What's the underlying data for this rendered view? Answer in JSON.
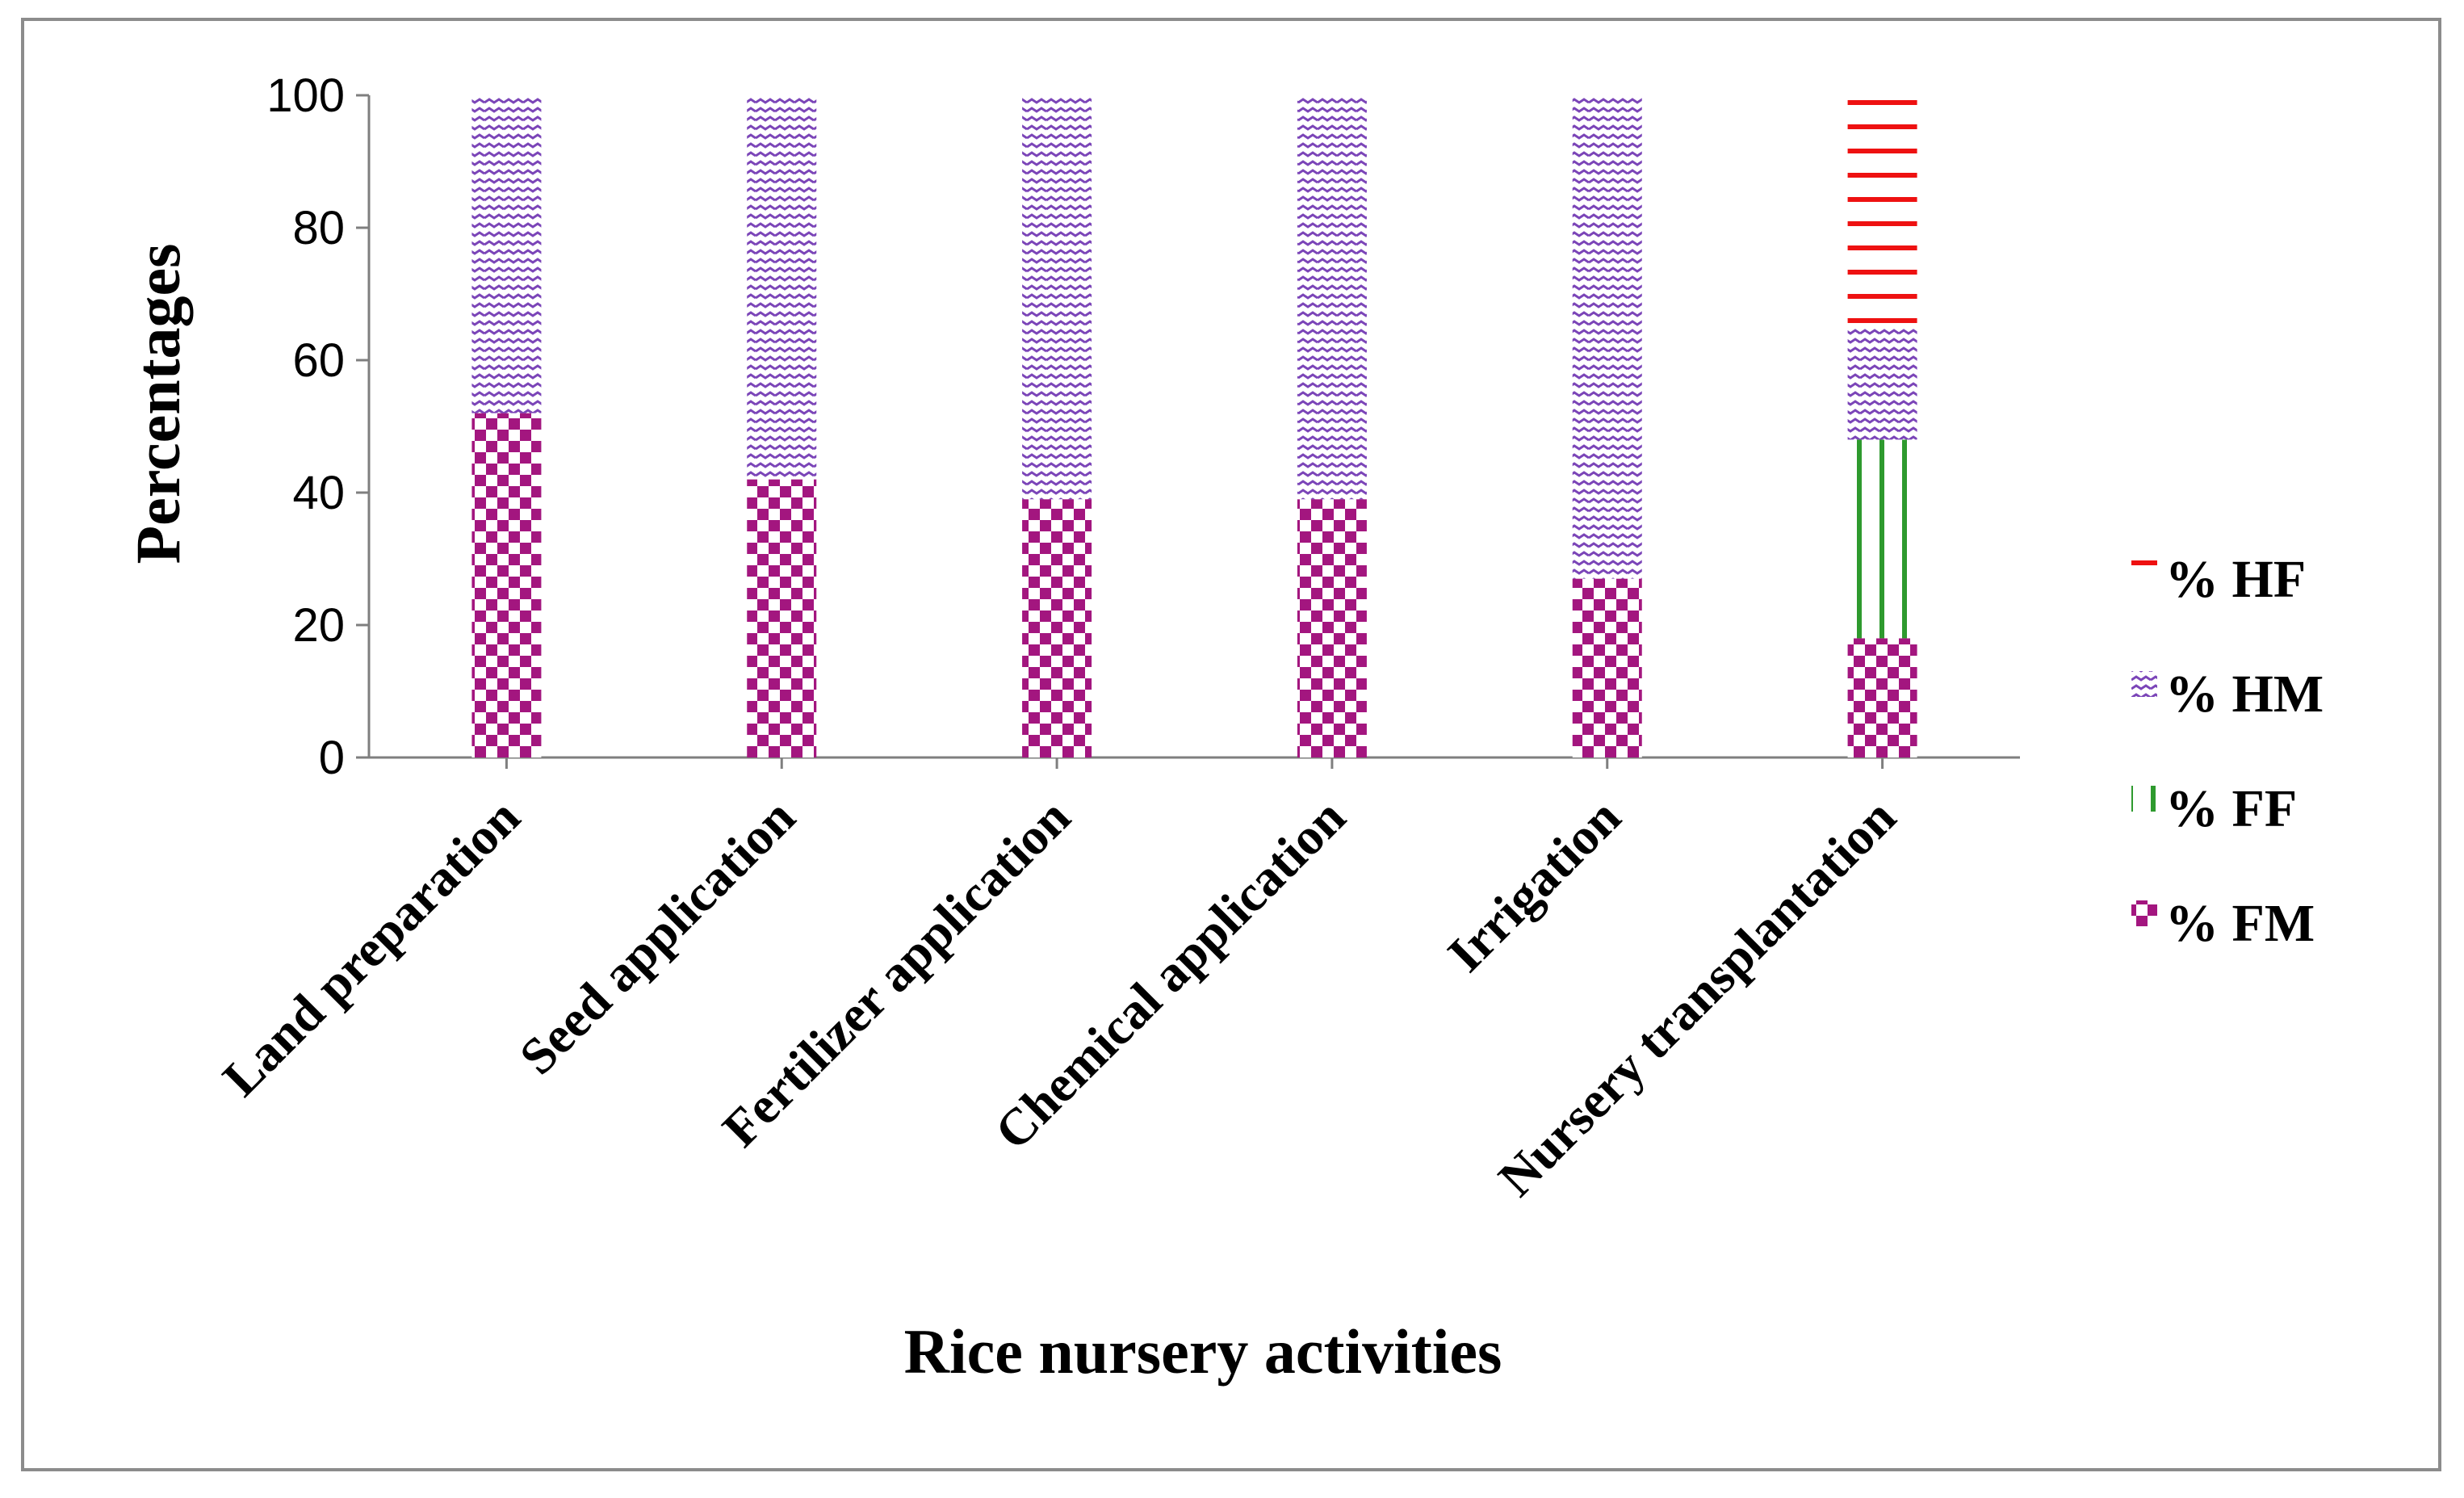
{
  "chart_data": {
    "type": "bar",
    "stacked": true,
    "title": "",
    "xlabel": "Rice nursery activities",
    "ylabel": "Percentages",
    "ylim": [
      0,
      100
    ],
    "yticks": [
      0,
      20,
      40,
      60,
      80,
      100
    ],
    "categories": [
      "Land preparation",
      "Seed application",
      "Fertilizer application",
      "Chemical application",
      "Irrigation",
      "Nursery transplantation"
    ],
    "series": [
      {
        "name": "% FM",
        "values": [
          52,
          42,
          39,
          39,
          27,
          18
        ],
        "color": "#a3167f",
        "pattern": "checker"
      },
      {
        "name": "% FF",
        "values": [
          0,
          0,
          0,
          0,
          0,
          30
        ],
        "color": "#2e9a2e",
        "pattern": "vertical"
      },
      {
        "name": "% HM",
        "values": [
          48,
          58,
          61,
          61,
          73,
          17
        ],
        "color": "#7b45b8",
        "pattern": "wave"
      },
      {
        "name": "% HF",
        "values": [
          0,
          0,
          0,
          0,
          0,
          35
        ],
        "color": "#ee1111",
        "pattern": "horizontal"
      }
    ],
    "legend_order": [
      "% HF",
      "% HM",
      "% FF",
      "% FM"
    ],
    "legend_position": "right",
    "grid": false
  }
}
